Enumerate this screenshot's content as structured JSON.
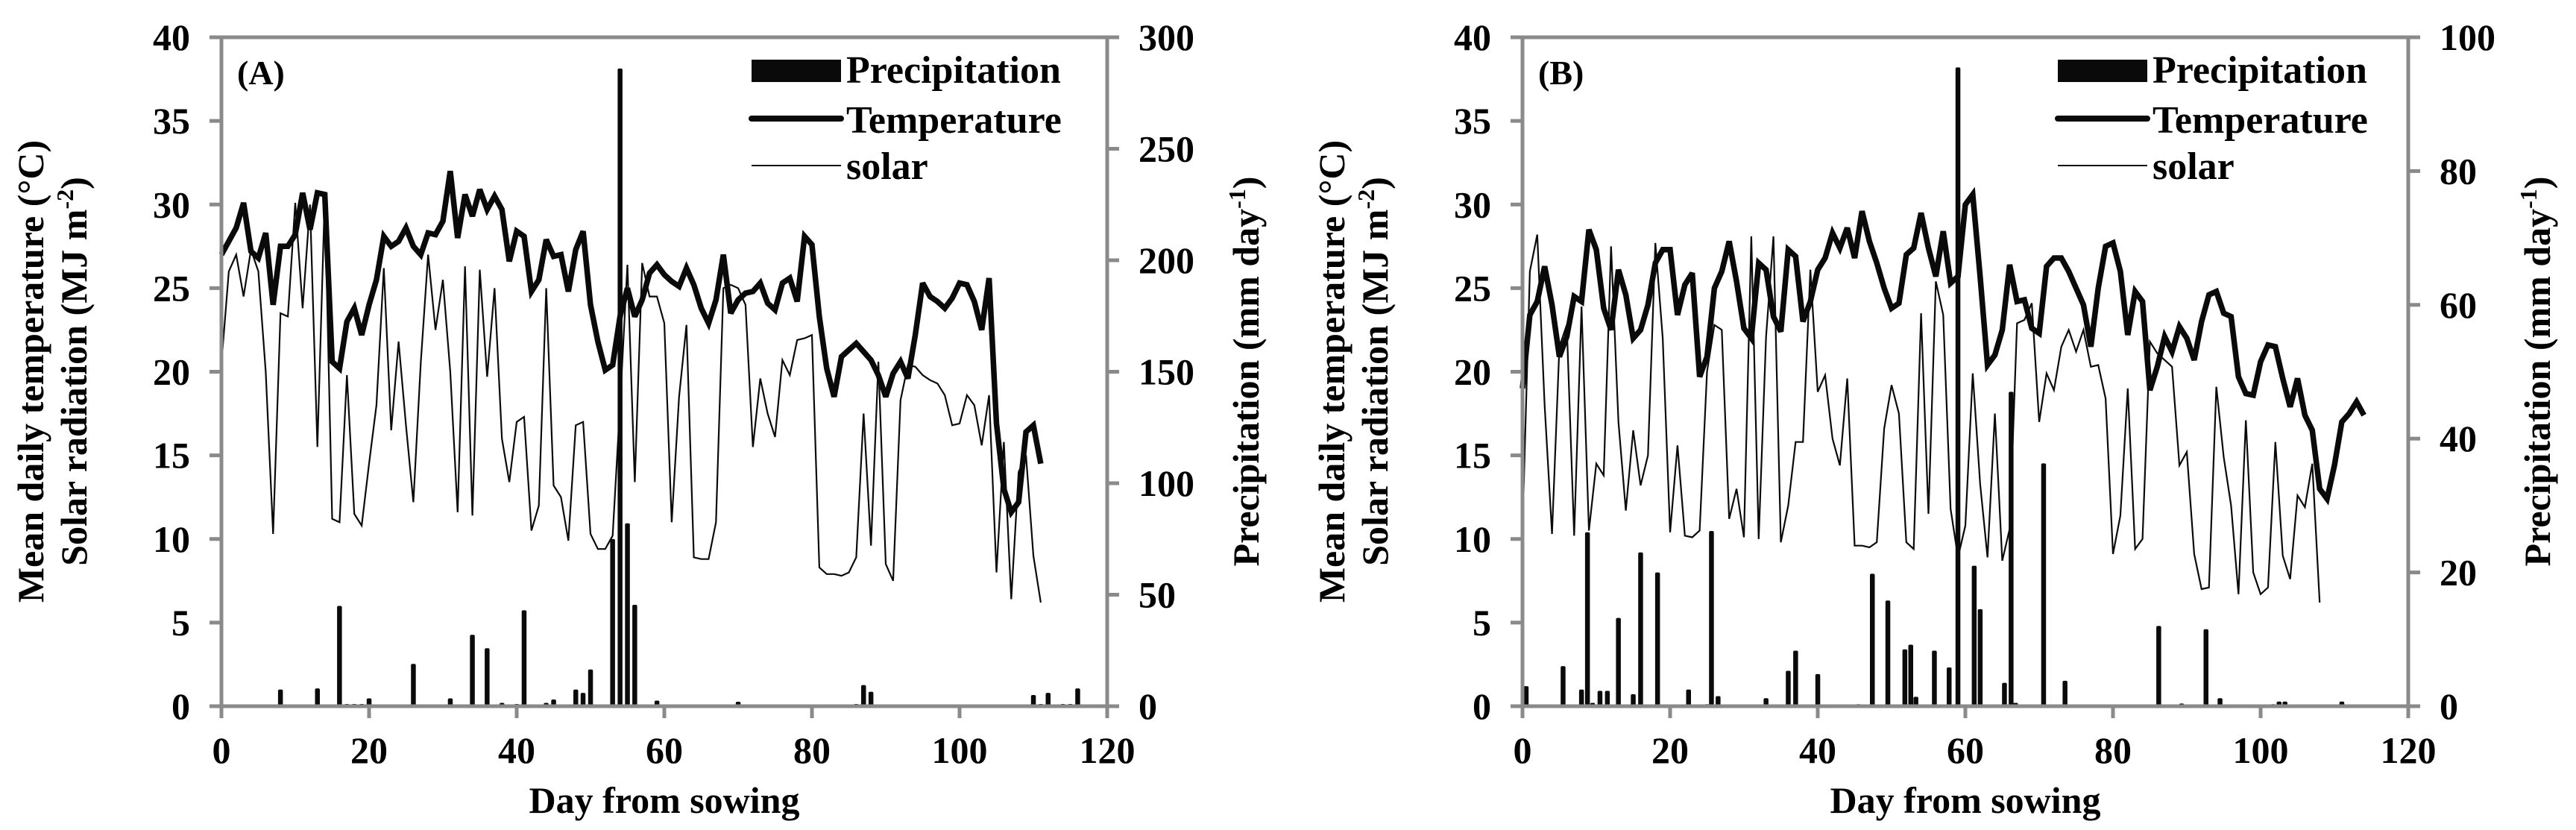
{
  "figure": {
    "panels": [
      "A",
      "B"
    ]
  },
  "chart_data": [
    {
      "type": "bar+line (dual axis)",
      "panel_label": "(A)",
      "title": "",
      "xlabel": "Day from sowing",
      "ylabel_left_line1": "Mean daily temperature (°C)",
      "ylabel_left_line2": "Solar radiation (MJ m-2)",
      "ylabel_right": "Precipitation (mm day-1)",
      "xlim": [
        0,
        120
      ],
      "ylim_left": [
        0,
        40
      ],
      "ylim_right": [
        0,
        300
      ],
      "x_ticks": [
        "0",
        "20",
        "40",
        "60",
        "80",
        "100",
        "120"
      ],
      "y_left_ticks": [
        "0",
        "5",
        "10",
        "15",
        "20",
        "25",
        "30",
        "35",
        "40"
      ],
      "y_right_ticks": [
        "0",
        "50",
        "100",
        "150",
        "200",
        "250",
        "300"
      ],
      "grid": false,
      "legend": {
        "position": "top-right",
        "entries": [
          {
            "label": "Precipitation",
            "style": "bar"
          },
          {
            "label": "Temperature",
            "style": "thick-line"
          },
          {
            "label": "solar",
            "style": "thin-line"
          }
        ]
      },
      "series": [
        {
          "name": "Temperature",
          "axis": "left",
          "x_start": 0,
          "values": [
            27.0,
            27.8,
            28.6,
            30.1,
            27.2,
            26.8,
            28.3,
            24.0,
            27.5,
            27.5,
            28.2,
            30.7,
            28.5,
            30.7,
            30.6,
            20.6,
            20.2,
            23.0,
            23.8,
            22.2,
            24.0,
            25.5,
            28.1,
            27.5,
            27.8,
            28.6,
            27.5,
            27.0,
            28.3,
            28.2,
            29.0,
            32.0,
            28.0,
            30.6,
            29.3,
            30.9,
            29.7,
            30.5,
            29.7,
            26.6,
            28.4,
            28.1,
            24.8,
            25.5,
            27.9,
            26.9,
            27.0,
            24.8,
            27.3,
            28.4,
            24.0,
            21.8,
            20.1,
            20.4,
            23.3,
            25.0,
            23.3,
            24.3,
            25.9,
            26.4,
            25.8,
            25.4,
            25.1,
            26.2,
            25.2,
            23.8,
            22.9,
            24.3,
            27.0,
            23.5,
            24.3,
            24.7,
            24.8,
            25.3,
            24.1,
            23.7,
            25.3,
            25.6,
            24.2,
            28.1,
            27.6,
            23.3,
            20.2,
            18.5,
            20.9,
            21.3,
            21.7,
            21.2,
            20.7,
            19.8,
            18.5,
            19.9,
            20.6,
            19.6,
            22.2,
            25.3,
            24.5,
            24.2,
            23.8,
            24.4,
            25.3,
            25.2,
            24.2,
            22.5,
            25.6,
            16.9,
            13.0,
            11.6,
            12.2,
            16.4,
            16.8,
            14.5
          ]
        },
        {
          "name": "solar",
          "axis": "left",
          "x_start": 0,
          "values": [
            20.5,
            26.0,
            27.0,
            24.5,
            27.3,
            26.0,
            20.0,
            10.3,
            23.5,
            23.3,
            30.1,
            23.8,
            30.0,
            15.5,
            30.5,
            11.2,
            11.0,
            19.8,
            11.5,
            10.8,
            14.5,
            18.0,
            26.2,
            16.5,
            21.8,
            16.8,
            12.2,
            20.5,
            27.0,
            22.5,
            25.5,
            20.0,
            11.6,
            26.3,
            11.4,
            26.1,
            19.7,
            25.0,
            16.0,
            13.4,
            17.0,
            17.3,
            10.5,
            12.0,
            25.0,
            13.2,
            12.5,
            9.9,
            16.8,
            17.0,
            10.3,
            9.4,
            9.4,
            10.2,
            18.0,
            26.4,
            13.4,
            26.5,
            24.5,
            24.5,
            22.9,
            11.0,
            18.5,
            22.8,
            8.9,
            8.8,
            8.8,
            11.0,
            25.0,
            25.2,
            25.0,
            24.0,
            15.5,
            19.6,
            17.5,
            16.1,
            20.7,
            19.8,
            21.9,
            22.0,
            22.2,
            8.3,
            7.9,
            7.9,
            7.8,
            8.0,
            8.9,
            17.5,
            9.6,
            20.6,
            8.5,
            7.5,
            18.3,
            20.4,
            20.3,
            19.8,
            19.5,
            19.3,
            18.6,
            16.8,
            16.9,
            18.6,
            18.0,
            15.6,
            18.6,
            8.0,
            15.8,
            6.4,
            14.0,
            15.0,
            9.0,
            6.2
          ]
        },
        {
          "name": "Precipitation",
          "axis": "right",
          "type": "bar",
          "points": [
            {
              "x": 8,
              "y": 7.5
            },
            {
              "x": 13,
              "y": 8.0
            },
            {
              "x": 16,
              "y": 45.0
            },
            {
              "x": 17,
              "y": 1.0
            },
            {
              "x": 18,
              "y": 1.0
            },
            {
              "x": 19,
              "y": 1.0
            },
            {
              "x": 20,
              "y": 3.5
            },
            {
              "x": 21,
              "y": 0.5
            },
            {
              "x": 26,
              "y": 19.0
            },
            {
              "x": 31,
              "y": 3.5
            },
            {
              "x": 34,
              "y": 32.0
            },
            {
              "x": 36,
              "y": 26.0
            },
            {
              "x": 38,
              "y": 1.5
            },
            {
              "x": 40,
              "y": 1.0
            },
            {
              "x": 41,
              "y": 43.0
            },
            {
              "x": 44,
              "y": 1.5
            },
            {
              "x": 45,
              "y": 3.0
            },
            {
              "x": 48,
              "y": 7.5
            },
            {
              "x": 49,
              "y": 6.0
            },
            {
              "x": 50,
              "y": 16.5
            },
            {
              "x": 53,
              "y": 75.0
            },
            {
              "x": 54,
              "y": 286.0
            },
            {
              "x": 55,
              "y": 82.0
            },
            {
              "x": 56,
              "y": 45.5
            },
            {
              "x": 57,
              "y": 0.5
            },
            {
              "x": 59,
              "y": 2.5
            },
            {
              "x": 69,
              "y": 0.5
            },
            {
              "x": 70,
              "y": 2.0
            },
            {
              "x": 86,
              "y": 1.0
            },
            {
              "x": 87,
              "y": 9.5
            },
            {
              "x": 88,
              "y": 6.5
            },
            {
              "x": 90,
              "y": 0.5
            },
            {
              "x": 110,
              "y": 5.0
            },
            {
              "x": 111,
              "y": 1.0
            },
            {
              "x": 112,
              "y": 6.0
            },
            {
              "x": 114,
              "y": 1.0
            },
            {
              "x": 115,
              "y": 1.0
            },
            {
              "x": 116,
              "y": 8.0
            }
          ]
        }
      ]
    },
    {
      "type": "bar+line (dual axis)",
      "panel_label": "(B)",
      "title": "",
      "xlabel": "Day from sowing",
      "ylabel_left_line1": "Mean daily temperature (°C)",
      "ylabel_left_line2": "Solar radiation (MJ m-2)",
      "ylabel_right": "Precipitation (mm day-1)",
      "xlim": [
        0,
        120
      ],
      "ylim_left": [
        0,
        40
      ],
      "ylim_right": [
        0,
        100
      ],
      "x_ticks": [
        "0",
        "20",
        "40",
        "60",
        "80",
        "100",
        "120"
      ],
      "y_left_ticks": [
        "0",
        "5",
        "10",
        "15",
        "20",
        "25",
        "30",
        "35",
        "40"
      ],
      "y_right_ticks": [
        "0",
        "20",
        "40",
        "60",
        "80",
        "100"
      ],
      "grid": false,
      "legend": {
        "position": "top-right",
        "entries": [
          {
            "label": "Precipitation",
            "style": "bar"
          },
          {
            "label": "Temperature",
            "style": "thick-line"
          },
          {
            "label": "solar",
            "style": "thin-line"
          }
        ]
      },
      "series": [
        {
          "name": "Temperature",
          "axis": "left",
          "x_start": 0,
          "values": [
            19.0,
            23.4,
            24.2,
            26.3,
            24.0,
            20.9,
            22.1,
            24.5,
            24.2,
            28.5,
            27.3,
            23.8,
            22.5,
            26.1,
            24.6,
            22.0,
            22.5,
            24.0,
            26.5,
            27.3,
            27.3,
            23.4,
            25.2,
            25.9,
            19.7,
            20.9,
            25.0,
            26.0,
            27.8,
            25.4,
            22.6,
            22.0,
            26.5,
            26.1,
            23.3,
            22.4,
            27.3,
            26.9,
            23.0,
            24.2,
            26.1,
            26.8,
            28.3,
            27.4,
            28.6,
            26.8,
            29.6,
            27.8,
            26.5,
            25.0,
            23.8,
            24.1,
            27.0,
            27.4,
            29.5,
            27.4,
            25.7,
            28.4,
            25.3,
            25.7,
            30.0,
            30.6,
            25.7,
            20.4,
            21.0,
            22.5,
            26.4,
            24.2,
            24.3,
            22.6,
            22.3,
            26.3,
            26.8,
            26.8,
            26.0,
            25.0,
            24.0,
            21.5,
            25.0,
            27.5,
            27.7,
            26.0,
            22.2,
            24.8,
            24.2,
            18.9,
            20.3,
            22.1,
            21.2,
            22.7,
            22.0,
            20.7,
            23.0,
            24.6,
            24.8,
            23.5,
            23.3,
            19.7,
            18.7,
            18.6,
            20.6,
            21.6,
            21.5,
            19.6,
            17.9,
            19.6,
            17.4,
            16.5,
            13.0,
            12.4,
            14.4,
            17.0,
            17.5,
            18.2,
            17.4
          ]
        },
        {
          "name": "solar",
          "axis": "left",
          "x_start": 0,
          "values": [
            10.5,
            26.0,
            28.2,
            18.0,
            10.3,
            21.5,
            22.8,
            10.2,
            23.9,
            10.5,
            14.5,
            13.8,
            27.5,
            17.0,
            11.7,
            16.5,
            13.2,
            15.0,
            27.7,
            22.0,
            10.4,
            15.6,
            10.2,
            10.1,
            10.5,
            20.0,
            22.8,
            22.5,
            11.2,
            13.0,
            10.1,
            28.1,
            10.0,
            22.1,
            28.1,
            9.8,
            12.0,
            15.8,
            15.8,
            26.1,
            18.8,
            19.8,
            16.0,
            14.4,
            19.6,
            9.6,
            9.6,
            9.5,
            9.8,
            16.6,
            19.2,
            17.5,
            9.8,
            9.4,
            23.5,
            11.5,
            25.4,
            23.4,
            11.8,
            8.9,
            10.8,
            19.9,
            13.3,
            8.9,
            17.5,
            8.7,
            10.6,
            22.9,
            23.1,
            24.1,
            17.0,
            19.9,
            18.9,
            21.5,
            22.5,
            21.2,
            22.5,
            20.3,
            20.4,
            18.4,
            9.1,
            11.4,
            19.0,
            9.4,
            10.0,
            21.8,
            21.1,
            20.7,
            20.3,
            14.4,
            15.2,
            9.1,
            7.0,
            7.1,
            19.1,
            14.9,
            12.0,
            6.7,
            17.1,
            8.0,
            6.7,
            7.1,
            15.8,
            9.0,
            7.6,
            12.6,
            11.9,
            14.5,
            6.2
          ]
        },
        {
          "name": "Precipitation",
          "axis": "right",
          "type": "bar",
          "points": [
            {
              "x": 0.5,
              "y": 3.0
            },
            {
              "x": 5.5,
              "y": 6.0
            },
            {
              "x": 8,
              "y": 2.5
            },
            {
              "x": 8.8,
              "y": 26.0
            },
            {
              "x": 9.5,
              "y": 0.5
            },
            {
              "x": 10.5,
              "y": 2.3
            },
            {
              "x": 11.5,
              "y": 2.3
            },
            {
              "x": 13,
              "y": 13.2
            },
            {
              "x": 15,
              "y": 1.8
            },
            {
              "x": 16,
              "y": 23.0
            },
            {
              "x": 18.3,
              "y": 20.0
            },
            {
              "x": 22.5,
              "y": 2.5
            },
            {
              "x": 25,
              "y": 0.3
            },
            {
              "x": 25.6,
              "y": 26.2
            },
            {
              "x": 26.5,
              "y": 1.5
            },
            {
              "x": 33,
              "y": 1.2
            },
            {
              "x": 36,
              "y": 5.3
            },
            {
              "x": 37,
              "y": 8.3
            },
            {
              "x": 40,
              "y": 4.8
            },
            {
              "x": 45.5,
              "y": 0.3
            },
            {
              "x": 47.4,
              "y": 19.8
            },
            {
              "x": 49.5,
              "y": 15.8
            },
            {
              "x": 51.8,
              "y": 8.5
            },
            {
              "x": 52.6,
              "y": 9.2
            },
            {
              "x": 53.3,
              "y": 1.4
            },
            {
              "x": 55.8,
              "y": 8.3
            },
            {
              "x": 57.8,
              "y": 5.8
            },
            {
              "x": 59,
              "y": 95.5
            },
            {
              "x": 61.2,
              "y": 21.0
            },
            {
              "x": 62,
              "y": 14.5
            },
            {
              "x": 65.3,
              "y": 3.5
            },
            {
              "x": 66.2,
              "y": 47.0
            },
            {
              "x": 66.8,
              "y": 0.5
            },
            {
              "x": 70.6,
              "y": 36.3
            },
            {
              "x": 73.5,
              "y": 3.8
            },
            {
              "x": 86.2,
              "y": 12.0
            },
            {
              "x": 89.3,
              "y": 0.4
            },
            {
              "x": 92.6,
              "y": 11.5
            },
            {
              "x": 94.5,
              "y": 1.2
            },
            {
              "x": 101.7,
              "y": 0.3
            },
            {
              "x": 102.5,
              "y": 0.7
            },
            {
              "x": 103.3,
              "y": 0.7
            },
            {
              "x": 111,
              "y": 0.7
            }
          ]
        }
      ]
    }
  ],
  "panelA": {
    "label": "(A)",
    "xlabel": "Day from sowing",
    "ylabel_line1": "Mean daily temperature (°C)",
    "ylabel_line2_main": "Solar radiation (MJ m",
    "ylabel_line2_sup": "-2",
    "ylabel_line2_end": ")",
    "ylabel_right_main": "Precipitation (mm day",
    "ylabel_right_sup": "-1",
    "ylabel_right_end": ")",
    "legend": [
      "Precipitation",
      "Temperature",
      "solar"
    ]
  },
  "panelB": {
    "label": "(B)",
    "xlabel": "Day from sowing",
    "ylabel_line1": "Mean daily temperature (°C)",
    "ylabel_line2_main": "Solar radiation (MJ m",
    "ylabel_line2_sup": "-2",
    "ylabel_line2_end": ")",
    "ylabel_right_main": "Precipitation (mm day",
    "ylabel_right_sup": "-1",
    "ylabel_right_end": ")",
    "legend": [
      "Precipitation",
      "Temperature",
      "solar"
    ]
  },
  "colors": {
    "axis": "#8a8a8a",
    "series": "#0a0a0a",
    "background": "#ffffff"
  }
}
